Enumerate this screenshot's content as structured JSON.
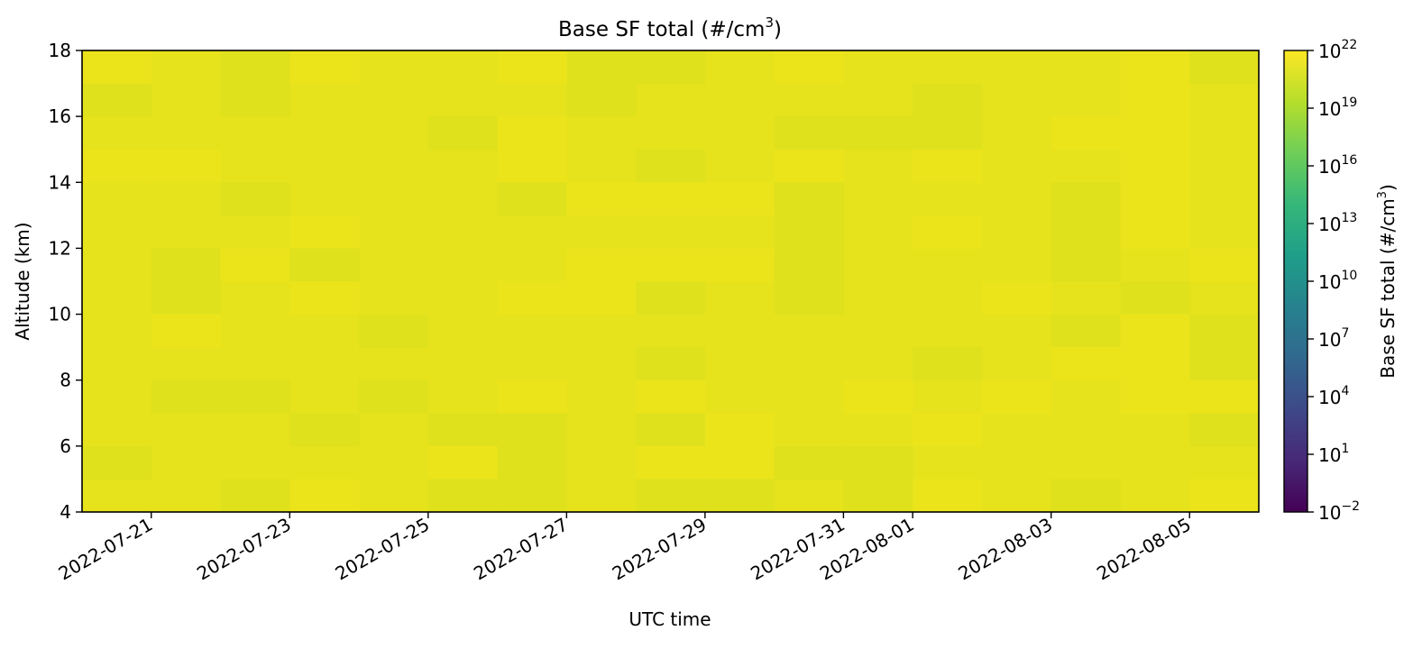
{
  "chart_data": {
    "type": "heatmap",
    "title": "Base SF total (#/cm",
    "title_superscript": "3",
    "title_suffix": ")",
    "xlabel": "UTC time",
    "ylabel": "Altitude (km)",
    "colorbar_label": "Base SF total (#/cm",
    "colorbar_label_superscript": "3",
    "colorbar_label_suffix": ")",
    "colormap": "viridis",
    "color_scale": "log",
    "x_range": [
      "2022-07-20",
      "2022-08-06"
    ],
    "xlim": [
      "2022-07-20T00:00",
      "2022-08-06T00:00"
    ],
    "x_ticks": [
      "2022-07-21",
      "2022-07-23",
      "2022-07-25",
      "2022-07-27",
      "2022-07-29",
      "2022-07-31",
      "2022-08-01",
      "2022-08-03",
      "2022-08-05"
    ],
    "ylim": [
      4,
      18
    ],
    "y_ticks": [
      "4",
      "6",
      "8",
      "10",
      "12",
      "14",
      "16",
      "18"
    ],
    "colorbar_range": [
      0.01,
      1e+22
    ],
    "colorbar_ticks": [
      {
        "base": "10",
        "exp": "22",
        "log": 22
      },
      {
        "base": "10",
        "exp": "19",
        "log": 19
      },
      {
        "base": "10",
        "exp": "16",
        "log": 16
      },
      {
        "base": "10",
        "exp": "13",
        "log": 13
      },
      {
        "base": "10",
        "exp": "10",
        "log": 10
      },
      {
        "base": "10",
        "exp": "7",
        "log": 7
      },
      {
        "base": "10",
        "exp": "4",
        "log": 4
      },
      {
        "base": "10",
        "exp": "1",
        "log": 1
      },
      {
        "base": "10",
        "exp": "−2",
        "log": -2
      }
    ],
    "field_description": "nearly uniform field with values near the top of the color scale (~1e21–1e22)",
    "colors": {
      "field_base": "#e6e21c",
      "field_light": "#ece51b",
      "field_dark": "#dfe11e",
      "cmap_stops": [
        "#440154",
        "#482878",
        "#3e4989",
        "#31688e",
        "#26828e",
        "#1f9e89",
        "#35b779",
        "#6ece58",
        "#b5de2b",
        "#fde725"
      ]
    }
  }
}
